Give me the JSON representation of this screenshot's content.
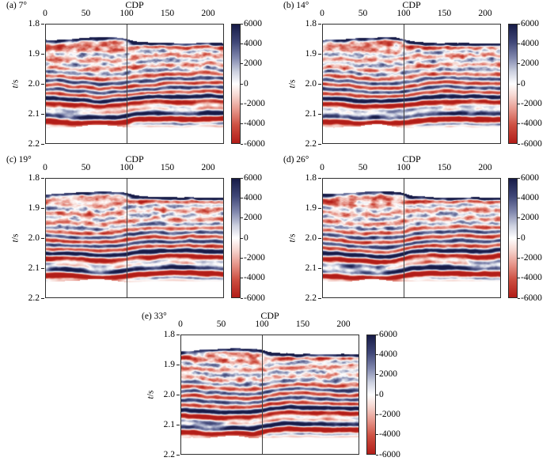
{
  "figure": {
    "background": "#ffffff",
    "axis_color": "#2e2e2e",
    "reference_line_color": "#3f3f3f",
    "colormap": {
      "positive_stops": [
        "#ffffff",
        "#ced2e1",
        "#8289af",
        "#404778",
        "#171b47"
      ],
      "positive_values": [
        0,
        1200,
        2600,
        4200,
        6000
      ],
      "negative_stops": [
        "#ffffff",
        "#f6d6d0",
        "#e7988d",
        "#cd4f41",
        "#b21d18"
      ],
      "negative_values": [
        0,
        1200,
        2600,
        4200,
        6000
      ]
    }
  },
  "panels": [
    {
      "id": "a",
      "label": "(a) 7°",
      "title": "CDP",
      "xticks": [
        "0",
        "50",
        "100",
        "150",
        "200"
      ],
      "yticks": [
        "1.8",
        "1.9",
        "2.0",
        "2.1",
        "2.2"
      ],
      "ylabel_italic": "t",
      "ylabel_rest": "/s",
      "colorbar_ticks": [
        "6000",
        "4000",
        "2000",
        "0",
        "-2000",
        "-4000",
        "-6000"
      ]
    },
    {
      "id": "b",
      "label": "(b) 14°",
      "title": "CDP",
      "xticks": [
        "0",
        "50",
        "100",
        "150",
        "200"
      ],
      "yticks": [
        "1.8",
        "1.9",
        "2.0",
        "2.1",
        "2.2"
      ],
      "ylabel_italic": "t",
      "ylabel_rest": "/s",
      "colorbar_ticks": [
        "6000",
        "4000",
        "2000",
        "0",
        "-2000",
        "-4000",
        "-6000"
      ]
    },
    {
      "id": "c",
      "label": "(c) 19°",
      "title": "CDP",
      "xticks": [
        "0",
        "50",
        "100",
        "150",
        "200"
      ],
      "yticks": [
        "1.8",
        "1.9",
        "2.0",
        "2.1",
        "2.2"
      ],
      "ylabel_italic": "t",
      "ylabel_rest": "/s",
      "colorbar_ticks": [
        "6000",
        "4000",
        "2000",
        "0",
        "-2000",
        "-4000",
        "-6000"
      ]
    },
    {
      "id": "d",
      "label": "(d) 26°",
      "title": "CDP",
      "xticks": [
        "0",
        "50",
        "100",
        "150",
        "200"
      ],
      "yticks": [
        "1.8",
        "1.9",
        "2.0",
        "2.1",
        "2.2"
      ],
      "ylabel_italic": "t",
      "ylabel_rest": "/s",
      "colorbar_ticks": [
        "6000",
        "4000",
        "2000",
        "0",
        "-2000",
        "-4000",
        "-6000"
      ]
    },
    {
      "id": "e",
      "label": "(e) 33°",
      "title": "CDP",
      "xticks": [
        "0",
        "50",
        "100",
        "150",
        "200"
      ],
      "yticks": [
        "1.8",
        "1.9",
        "2.0",
        "2.1",
        "2.2"
      ],
      "ylabel_italic": "t",
      "ylabel_rest": "/s",
      "colorbar_ticks": [
        "6000",
        "4000",
        "2000",
        "0",
        "-2000",
        "-4000",
        "-6000"
      ]
    }
  ],
  "chart_data": {
    "type": "heatmap",
    "layout": "5 seismic angle-stack panels: (a),(b) top row; (c),(d) middle row; (e) bottom center",
    "panels": [
      {
        "label": "(a) 7°",
        "angle_deg": 7
      },
      {
        "label": "(b) 14°",
        "angle_deg": 14
      },
      {
        "label": "(c) 19°",
        "angle_deg": 19
      },
      {
        "label": "(d) 26°",
        "angle_deg": 26
      },
      {
        "label": "(e) 33°",
        "angle_deg": 33
      }
    ],
    "shared_axes": {
      "x_axis": {
        "title": "CDP",
        "position": "top",
        "ticks": [
          0,
          50,
          100,
          150,
          200
        ],
        "range": [
          0,
          220
        ]
      },
      "y_axis": {
        "label": "t/s",
        "ticks": [
          1.8,
          1.9,
          2.0,
          2.1,
          2.2
        ],
        "range": [
          1.8,
          2.2
        ],
        "direction": "increasing downward"
      },
      "colorbar": {
        "range": [
          -6000,
          6000
        ],
        "ticks": [
          6000,
          4000,
          2000,
          0,
          -2000,
          -4000,
          -6000
        ],
        "positive_color": "dark navy blue",
        "zero_color": "white",
        "negative_color": "red"
      },
      "vertical_reference_line_at_cdp": 100,
      "signal_band_t_extent": [
        1.85,
        2.15
      ],
      "structure": "shallow bump in reflectors near CDP 60-90, step down across CDP 100-115",
      "main_reflectors_t": [
        {
          "t": 1.86,
          "polarity": "peak (navy), strongest right of CDP 100"
        },
        {
          "t": 1.88,
          "polarity": "trough (red)"
        },
        {
          "t": 2.0,
          "polarity": "alternating strong red/blue banding"
        },
        {
          "t": 2.055,
          "polarity": "peak (blue)"
        },
        {
          "t": 2.076,
          "polarity": "trough (strong red)"
        },
        {
          "t": 2.098,
          "polarity": "peak (strong navy)"
        },
        {
          "t": 2.121,
          "polarity": "trough (red)"
        },
        {
          "t": 2.137,
          "polarity": "trough (pink, fading)"
        }
      ]
    }
  }
}
